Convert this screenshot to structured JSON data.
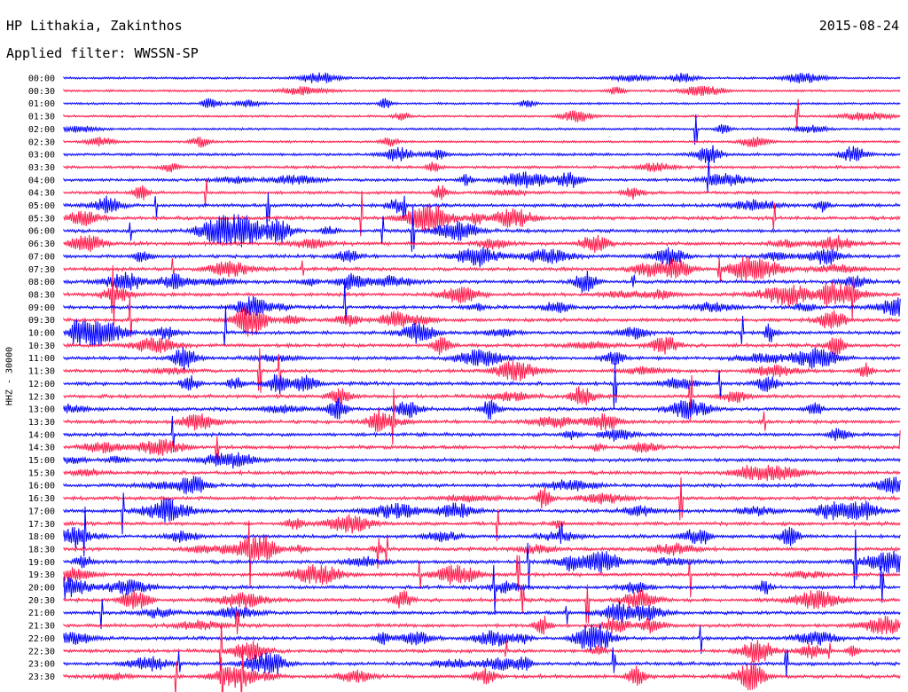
{
  "header": {
    "station": "HP Lithakia, Zakinthos",
    "date": "2015-08-24",
    "filter": "Applied filter: WWSSN-SP"
  },
  "chart_data": {
    "type": "line",
    "title": "HP Lithakia, Zakinthos",
    "ylabel": "HHZ - 30000",
    "row_labels": [
      "00:00",
      "00:30",
      "01:00",
      "01:30",
      "02:00",
      "02:30",
      "03:00",
      "03:30",
      "04:00",
      "04:30",
      "05:00",
      "05:30",
      "06:00",
      "06:30",
      "07:00",
      "07:30",
      "08:00",
      "08:30",
      "09:00",
      "09:30",
      "10:00",
      "10:30",
      "11:00",
      "11:30",
      "12:00",
      "12:30",
      "13:00",
      "13:30",
      "14:00",
      "14:30",
      "15:00",
      "15:30",
      "16:00",
      "16:30",
      "17:00",
      "17:30",
      "18:00",
      "18:30",
      "19:00",
      "19:30",
      "20:00",
      "20:30",
      "21:00",
      "21:30",
      "22:00",
      "22:30",
      "23:00",
      "23:30"
    ],
    "series_colors": [
      "#0000ff",
      "#ff1a4a"
    ],
    "grid": false
  }
}
